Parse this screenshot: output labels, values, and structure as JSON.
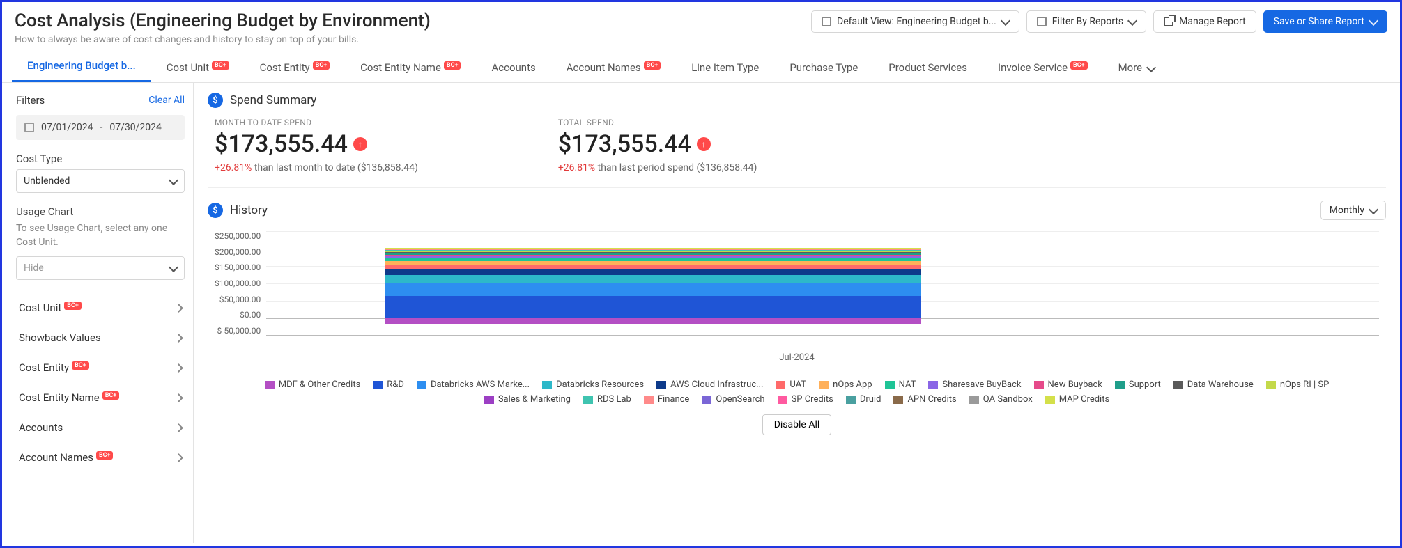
{
  "header": {
    "title": "Cost Analysis (Engineering Budget by Environment)",
    "subtitle": "How to always be aware of cost changes and history to stay on top of your bills.",
    "default_view": "Default View: Engineering Budget b...",
    "filter_reports": "Filter By Reports",
    "manage": "Manage Report",
    "save": "Save or Share Report"
  },
  "tabs": {
    "items": [
      {
        "label": "Engineering Budget b...",
        "active": true,
        "badge": null
      },
      {
        "label": "Cost Unit",
        "badge": "BC+"
      },
      {
        "label": "Cost Entity",
        "badge": "BC+"
      },
      {
        "label": "Cost Entity Name",
        "badge": "BC+"
      },
      {
        "label": "Accounts",
        "badge": null
      },
      {
        "label": "Account Names",
        "badge": "BC+"
      },
      {
        "label": "Line Item Type",
        "badge": null
      },
      {
        "label": "Purchase Type",
        "badge": null
      },
      {
        "label": "Product Services",
        "badge": null
      },
      {
        "label": "Invoice Service",
        "badge": "BC+"
      }
    ],
    "more": "More"
  },
  "filters": {
    "title": "Filters",
    "clear": "Clear All",
    "date_from": "07/01/2024",
    "date_sep": "-",
    "date_to": "07/30/2024",
    "cost_type_label": "Cost Type",
    "cost_type_value": "Unblended",
    "usage_label": "Usage Chart",
    "usage_help": "To see Usage Chart, select any one Cost Unit.",
    "usage_value": "Hide",
    "rows": [
      {
        "label": "Cost Unit",
        "badge": "BC+"
      },
      {
        "label": "Showback Values",
        "badge": null
      },
      {
        "label": "Cost Entity",
        "badge": "BC+"
      },
      {
        "label": "Cost Entity Name",
        "badge": "BC+"
      },
      {
        "label": "Accounts",
        "badge": null
      },
      {
        "label": "Account Names",
        "badge": "BC+"
      }
    ]
  },
  "summary": {
    "title": "Spend Summary",
    "mtd_label": "MONTH TO DATE SPEND",
    "mtd_value": "$173,555.44",
    "mtd_pct": "+26.81%",
    "mtd_rest": " than last month to date ($136,858.44)",
    "total_label": "TOTAL SPEND",
    "total_value": "$173,555.44",
    "total_pct": "+26.81%",
    "total_rest": " than last period spend ($136,858.44)"
  },
  "history": {
    "title": "History",
    "granularity": "Monthly",
    "xlabel": "Jul-2024",
    "yticks": [
      "$250,000.00",
      "$200,000.00",
      "$150,000.00",
      "$100,000.00",
      "$50,000.00",
      "$0.00",
      "$-50,000.00"
    ],
    "ymin": -50000,
    "ymax": 250000,
    "segments": [
      {
        "name": "MDF & Other Credits",
        "color": "#b44fc4",
        "value": -18000
      },
      {
        "name": "R&D",
        "color": "#1f55d6",
        "value": 62000
      },
      {
        "name": "Databricks AWS Marke...",
        "color": "#2d8ef0",
        "value": 38000
      },
      {
        "name": "Databricks Resources",
        "color": "#2db8c9",
        "value": 22000
      },
      {
        "name": "AWS Cloud Infrastruc...",
        "color": "#0d3a8a",
        "value": 18000
      },
      {
        "name": "UAT",
        "color": "#ff6a6a",
        "value": 12000
      },
      {
        "name": "nOps App",
        "color": "#ffb05a",
        "value": 10000
      },
      {
        "name": "NAT",
        "color": "#1fc496",
        "value": 8000
      },
      {
        "name": "Sharesave BuyBack",
        "color": "#8a66e6",
        "value": 6000
      },
      {
        "name": "New Buyback",
        "color": "#e64a8a",
        "value": 5000
      },
      {
        "name": "Support",
        "color": "#1f9e8a",
        "value": 4000
      },
      {
        "name": "Data Warehouse",
        "color": "#5a5a5a",
        "value": 3000
      },
      {
        "name": "nOps RI | SP",
        "color": "#c4d94a",
        "value": 2500
      },
      {
        "name": "Sales  & Marketing",
        "color": "#9c3fc4",
        "value": 2000
      },
      {
        "name": "RDS Lab",
        "color": "#3fc4b0",
        "value": 1500
      },
      {
        "name": "Finance",
        "color": "#ff8a8a",
        "value": 1200
      },
      {
        "name": "OpenSearch",
        "color": "#7a66d6",
        "value": 1000
      },
      {
        "name": "SP Credits",
        "color": "#ff5aa0",
        "value": 800
      },
      {
        "name": "Druid",
        "color": "#4aa0a0",
        "value": 700
      },
      {
        "name": "APN Credits",
        "color": "#8a6a4a",
        "value": 600
      },
      {
        "name": "QA Sandbox",
        "color": "#9a9a9a",
        "value": 500
      },
      {
        "name": "MAP Credits",
        "color": "#d4e04a",
        "value": 400
      }
    ],
    "disable": "Disable All"
  }
}
